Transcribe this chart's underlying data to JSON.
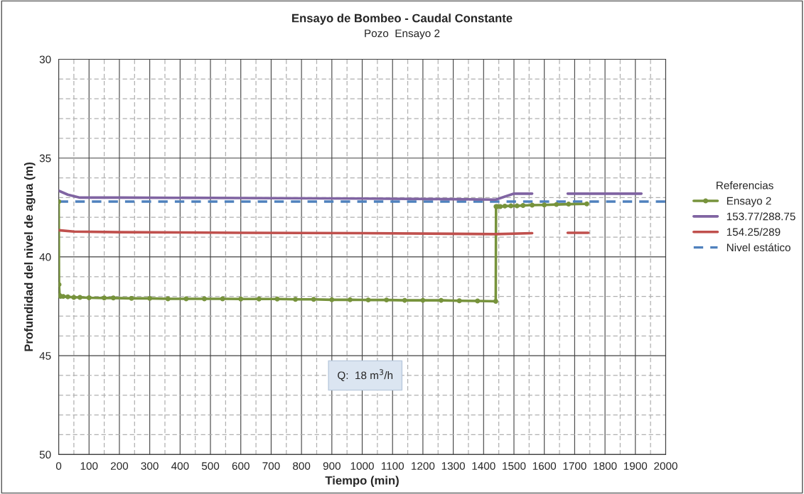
{
  "chart_data": {
    "type": "line",
    "title": "Ensayo de Bombeo - Caudal Constante",
    "subtitle": "Pozo  Ensayo 2",
    "xlabel": "Tiempo (min)",
    "ylabel": "Profundidad del nivel de agua (m)",
    "legend_title": "Referencias",
    "annotations": [
      "Q:  18 m$^{3}$/h"
    ],
    "series": [
      {
        "name": "Ensayo 2",
        "color": "#77933c",
        "marker": "circle",
        "x": [
          0,
          1,
          3,
          6,
          15,
          30,
          50,
          70,
          100,
          150,
          180,
          240,
          300,
          360,
          420,
          480,
          540,
          600,
          660,
          720,
          780,
          840,
          900,
          960,
          1020,
          1080,
          1140,
          1200,
          1260,
          1320,
          1380,
          1440,
          1441,
          1445,
          1455,
          1470,
          1490,
          1510,
          1530,
          1560,
          1600,
          1640,
          1680,
          1740
        ],
        "values": [
          37.2,
          41.4,
          41.95,
          42.0,
          42.0,
          42.02,
          42.05,
          42.05,
          42.07,
          42.08,
          42.08,
          42.1,
          42.1,
          42.12,
          42.12,
          42.12,
          42.12,
          42.13,
          42.13,
          42.13,
          42.15,
          42.15,
          42.17,
          42.17,
          42.18,
          42.18,
          42.2,
          42.2,
          42.2,
          42.22,
          42.23,
          42.25,
          37.45,
          37.45,
          37.45,
          37.43,
          37.42,
          37.42,
          37.4,
          37.38,
          37.37,
          37.35,
          37.33,
          37.32
        ]
      },
      {
        "name": "153.77/288.75",
        "color": "#8064a2",
        "x": [
          0,
          30,
          70,
          200,
          600,
          1000,
          1300,
          1440,
          1470,
          1500,
          1560,
          1600,
          1677,
          1800,
          1920
        ],
        "values": [
          36.65,
          36.85,
          37.0,
          37.0,
          37.02,
          37.05,
          37.08,
          37.1,
          36.95,
          36.8,
          36.8,
          null,
          36.8,
          36.8,
          36.8
        ]
      },
      {
        "name": "154.25/289",
        "color": "#c0504d",
        "x": [
          0,
          50,
          200,
          600,
          1000,
          1300,
          1440,
          1560,
          1600,
          1677,
          1745
        ],
        "values": [
          38.65,
          38.72,
          38.75,
          38.78,
          38.8,
          38.83,
          38.85,
          38.8,
          null,
          38.78,
          38.78
        ]
      }
    ],
    "ref_lines": [
      {
        "axis": "y",
        "value": 37.2,
        "label": "Nivel estático",
        "color": "#4f81bd",
        "line_style": "dashed"
      }
    ],
    "xlim": [
      0,
      2000
    ],
    "xticks": [
      0,
      100,
      200,
      300,
      400,
      500,
      600,
      700,
      800,
      900,
      1000,
      1100,
      1200,
      1300,
      1400,
      1500,
      1600,
      1700,
      1800,
      1900,
      2000
    ],
    "ylim": [
      50,
      30
    ],
    "yticks": [
      30,
      35,
      40,
      45,
      50
    ],
    "grid": true,
    "legend": "right",
    "line_style": "solid"
  }
}
